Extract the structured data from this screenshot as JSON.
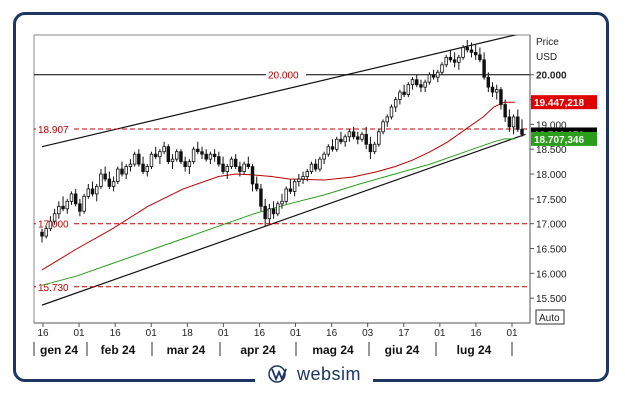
{
  "brand": {
    "name": "websim",
    "mark": "W/S",
    "frame_color": "#1c3561"
  },
  "axis_header": {
    "line1": "Price",
    "line2": "USD"
  },
  "auto_label": "Auto",
  "chart_data": {
    "type": "candlestick",
    "currency": "USD",
    "ylim": [
      15000,
      20800
    ],
    "y_ticks": [
      {
        "value": 20000,
        "label": "20.000"
      },
      {
        "value": 19500,
        "label": "19.500"
      },
      {
        "value": 19000,
        "label": "19.000"
      },
      {
        "value": 18500,
        "label": "18.500"
      },
      {
        "value": 18000,
        "label": "18.000"
      },
      {
        "value": 17500,
        "label": "17.500"
      },
      {
        "value": 17000,
        "label": "17.000"
      },
      {
        "value": 16500,
        "label": "16.500"
      },
      {
        "value": 16000,
        "label": "16.000"
      },
      {
        "value": 15500,
        "label": "15.500"
      }
    ],
    "x_ticks": [
      "16",
      "01",
      "16",
      "01",
      "18",
      "01",
      "16",
      "01",
      "16",
      "03",
      "17",
      "01",
      "16",
      "01"
    ],
    "x_months": [
      "gen 24",
      "feb 24",
      "mar 24",
      "apr 24",
      "mag 24",
      "giu 24",
      "lug 24"
    ],
    "horizontal_levels": [
      {
        "value": 20000,
        "label": "20.000",
        "style": "solid",
        "color": "#000000"
      },
      {
        "value": 18907,
        "label": "18.907",
        "style": "dashed",
        "color": "#c00000"
      },
      {
        "value": 17000,
        "label": "17.000",
        "style": "dashed",
        "color": "#c00000"
      },
      {
        "value": 15730,
        "label": "15.730",
        "style": "dashed",
        "color": "#c00000"
      }
    ],
    "price_markers": [
      {
        "value": 19447.218,
        "label": "19.447,218",
        "bg": "#e00000",
        "fg": "#ffffff"
      },
      {
        "value": 18796.273,
        "label": "18.796,273",
        "bg": "#000000",
        "fg": "#ffffff"
      },
      {
        "value": 18707.346,
        "label": "18.707,346",
        "bg": "#2a9d1a",
        "fg": "#ffffff"
      }
    ],
    "channel": {
      "upper": [
        {
          "i": 0,
          "v": 18550
        },
        {
          "i": 137,
          "v": 20850
        }
      ],
      "lower": [
        {
          "i": 0,
          "v": 15360
        },
        {
          "i": 137,
          "v": 18800
        }
      ]
    },
    "series": [
      {
        "name": "",
        "color": "#c00000",
        "kind": "moving_average",
        "points": [
          [
            0,
            16070
          ],
          [
            10,
            16500
          ],
          [
            20,
            16900
          ],
          [
            30,
            17350
          ],
          [
            40,
            17700
          ],
          [
            50,
            17950
          ],
          [
            55,
            18000
          ],
          [
            60,
            17980
          ],
          [
            65,
            17950
          ],
          [
            70,
            17900
          ],
          [
            80,
            17880
          ],
          [
            88,
            17940
          ],
          [
            95,
            18050
          ],
          [
            100,
            18150
          ],
          [
            105,
            18280
          ],
          [
            110,
            18450
          ],
          [
            115,
            18650
          ],
          [
            120,
            18900
          ],
          [
            125,
            19150
          ],
          [
            128,
            19350
          ],
          [
            131,
            19447
          ],
          [
            134,
            19447
          ]
        ]
      },
      {
        "name": "",
        "color": "#2a9d1a",
        "kind": "moving_average",
        "points": [
          [
            0,
            15760
          ],
          [
            10,
            15950
          ],
          [
            20,
            16200
          ],
          [
            30,
            16450
          ],
          [
            40,
            16700
          ],
          [
            50,
            16950
          ],
          [
            60,
            17200
          ],
          [
            70,
            17400
          ],
          [
            80,
            17580
          ],
          [
            90,
            17800
          ],
          [
            100,
            18000
          ],
          [
            110,
            18200
          ],
          [
            120,
            18450
          ],
          [
            128,
            18650
          ],
          [
            131,
            18707
          ],
          [
            134,
            18707
          ]
        ]
      }
    ],
    "candles": [
      [
        16830,
        16900,
        16620,
        16750
      ],
      [
        16750,
        16950,
        16700,
        16900
      ],
      [
        16900,
        17150,
        16850,
        17050
      ],
      [
        17050,
        17300,
        16980,
        17200
      ],
      [
        17200,
        17450,
        17100,
        17350
      ],
      [
        17350,
        17550,
        17250,
        17300
      ],
      [
        17300,
        17500,
        17200,
        17450
      ],
      [
        17450,
        17650,
        17380,
        17600
      ],
      [
        17600,
        17700,
        17350,
        17400
      ],
      [
        17400,
        17500,
        17150,
        17250
      ],
      [
        17250,
        17600,
        17200,
        17550
      ],
      [
        17550,
        17800,
        17500,
        17700
      ],
      [
        17700,
        17850,
        17550,
        17600
      ],
      [
        17600,
        17800,
        17450,
        17750
      ],
      [
        17750,
        18100,
        17700,
        18000
      ],
      [
        18000,
        18150,
        17850,
        17900
      ],
      [
        17900,
        18050,
        17700,
        17750
      ],
      [
        17750,
        17950,
        17650,
        17850
      ],
      [
        17850,
        18150,
        17800,
        18100
      ],
      [
        18100,
        18250,
        17950,
        18000
      ],
      [
        18000,
        18200,
        17900,
        18150
      ],
      [
        18150,
        18300,
        18050,
        18200
      ],
      [
        18200,
        18450,
        18150,
        18400
      ],
      [
        18400,
        18500,
        18150,
        18200
      ],
      [
        18200,
        18350,
        18000,
        18050
      ],
      [
        18050,
        18200,
        17950,
        18150
      ],
      [
        18150,
        18450,
        18100,
        18400
      ],
      [
        18400,
        18550,
        18300,
        18350
      ],
      [
        18350,
        18500,
        18200,
        18450
      ],
      [
        18450,
        18650,
        18400,
        18550
      ],
      [
        18550,
        18600,
        18200,
        18250
      ],
      [
        18250,
        18400,
        18100,
        18300
      ],
      [
        18300,
        18500,
        18250,
        18450
      ],
      [
        18450,
        18500,
        18200,
        18250
      ],
      [
        18250,
        18350,
        18050,
        18150
      ],
      [
        18150,
        18300,
        18000,
        18250
      ],
      [
        18250,
        18550,
        18200,
        18500
      ],
      [
        18500,
        18650,
        18400,
        18450
      ],
      [
        18450,
        18550,
        18300,
        18400
      ],
      [
        18400,
        18500,
        18250,
        18300
      ],
      [
        18300,
        18450,
        18200,
        18400
      ],
      [
        18400,
        18500,
        18250,
        18350
      ],
      [
        18350,
        18450,
        18150,
        18200
      ],
      [
        18200,
        18350,
        18000,
        18050
      ],
      [
        18050,
        18200,
        17900,
        18150
      ],
      [
        18150,
        18350,
        18100,
        18300
      ],
      [
        18300,
        18400,
        18100,
        18150
      ],
      [
        18150,
        18250,
        17950,
        18050
      ],
      [
        18050,
        18250,
        18000,
        18200
      ],
      [
        18200,
        18350,
        18100,
        18150
      ],
      [
        18150,
        18200,
        17650,
        17800
      ],
      [
        17800,
        17950,
        17650,
        17700
      ],
      [
        17700,
        17800,
        17250,
        17350
      ],
      [
        17350,
        17500,
        16950,
        17100
      ],
      [
        17100,
        17400,
        17000,
        17300
      ],
      [
        17300,
        17450,
        17100,
        17200
      ],
      [
        17200,
        17450,
        17150,
        17400
      ],
      [
        17400,
        17600,
        17300,
        17450
      ],
      [
        17450,
        17750,
        17400,
        17700
      ],
      [
        17700,
        17900,
        17600,
        17650
      ],
      [
        17650,
        17900,
        17550,
        17850
      ],
      [
        17850,
        18000,
        17750,
        17900
      ],
      [
        17900,
        18050,
        17800,
        17950
      ],
      [
        17950,
        18100,
        17850,
        18050
      ],
      [
        18050,
        18250,
        18000,
        18200
      ],
      [
        18200,
        18300,
        18050,
        18100
      ],
      [
        18100,
        18350,
        18050,
        18300
      ],
      [
        18300,
        18450,
        18200,
        18400
      ],
      [
        18400,
        18600,
        18350,
        18550
      ],
      [
        18550,
        18700,
        18450,
        18500
      ],
      [
        18500,
        18750,
        18450,
        18700
      ],
      [
        18700,
        18850,
        18600,
        18650
      ],
      [
        18650,
        18800,
        18550,
        18750
      ],
      [
        18750,
        18900,
        18650,
        18850
      ],
      [
        18850,
        18950,
        18700,
        18750
      ],
      [
        18750,
        18850,
        18600,
        18700
      ],
      [
        18700,
        18850,
        18650,
        18800
      ],
      [
        18800,
        18950,
        18500,
        18600
      ],
      [
        18600,
        18750,
        18300,
        18450
      ],
      [
        18450,
        18650,
        18400,
        18600
      ],
      [
        18600,
        18900,
        18550,
        18850
      ],
      [
        18850,
        19100,
        18800,
        19050
      ],
      [
        19050,
        19200,
        18950,
        19150
      ],
      [
        19150,
        19400,
        19100,
        19350
      ],
      [
        19350,
        19550,
        19250,
        19500
      ],
      [
        19500,
        19700,
        19400,
        19650
      ],
      [
        19650,
        19800,
        19550,
        19600
      ],
      [
        19600,
        19850,
        19550,
        19800
      ],
      [
        19800,
        19950,
        19700,
        19900
      ],
      [
        19900,
        20000,
        19750,
        19800
      ],
      [
        19800,
        19900,
        19650,
        19750
      ],
      [
        19750,
        19900,
        19650,
        19850
      ],
      [
        19850,
        20050,
        19800,
        20000
      ],
      [
        20000,
        20100,
        19900,
        19950
      ],
      [
        19950,
        20100,
        19850,
        20050
      ],
      [
        20050,
        20250,
        20000,
        20200
      ],
      [
        20200,
        20400,
        20150,
        20350
      ],
      [
        20350,
        20500,
        20250,
        20300
      ],
      [
        20300,
        20450,
        20150,
        20250
      ],
      [
        20250,
        20400,
        20100,
        20350
      ],
      [
        20350,
        20600,
        20300,
        20550
      ],
      [
        20550,
        20700,
        20450,
        20500
      ],
      [
        20500,
        20650,
        20350,
        20450
      ],
      [
        20450,
        20600,
        20300,
        20400
      ],
      [
        20400,
        20550,
        20250,
        20300
      ],
      [
        20300,
        20450,
        19900,
        19950
      ],
      [
        19950,
        20050,
        19650,
        19750
      ],
      [
        19750,
        19850,
        19550,
        19650
      ],
      [
        19650,
        19800,
        19500,
        19700
      ],
      [
        19700,
        19750,
        19300,
        19400
      ],
      [
        19400,
        19500,
        19050,
        19150
      ],
      [
        19150,
        19300,
        18850,
        18950
      ],
      [
        18950,
        19200,
        18800,
        19150
      ],
      [
        19150,
        19300,
        18850,
        18900
      ],
      [
        18900,
        19100,
        18750,
        18800
      ]
    ]
  }
}
